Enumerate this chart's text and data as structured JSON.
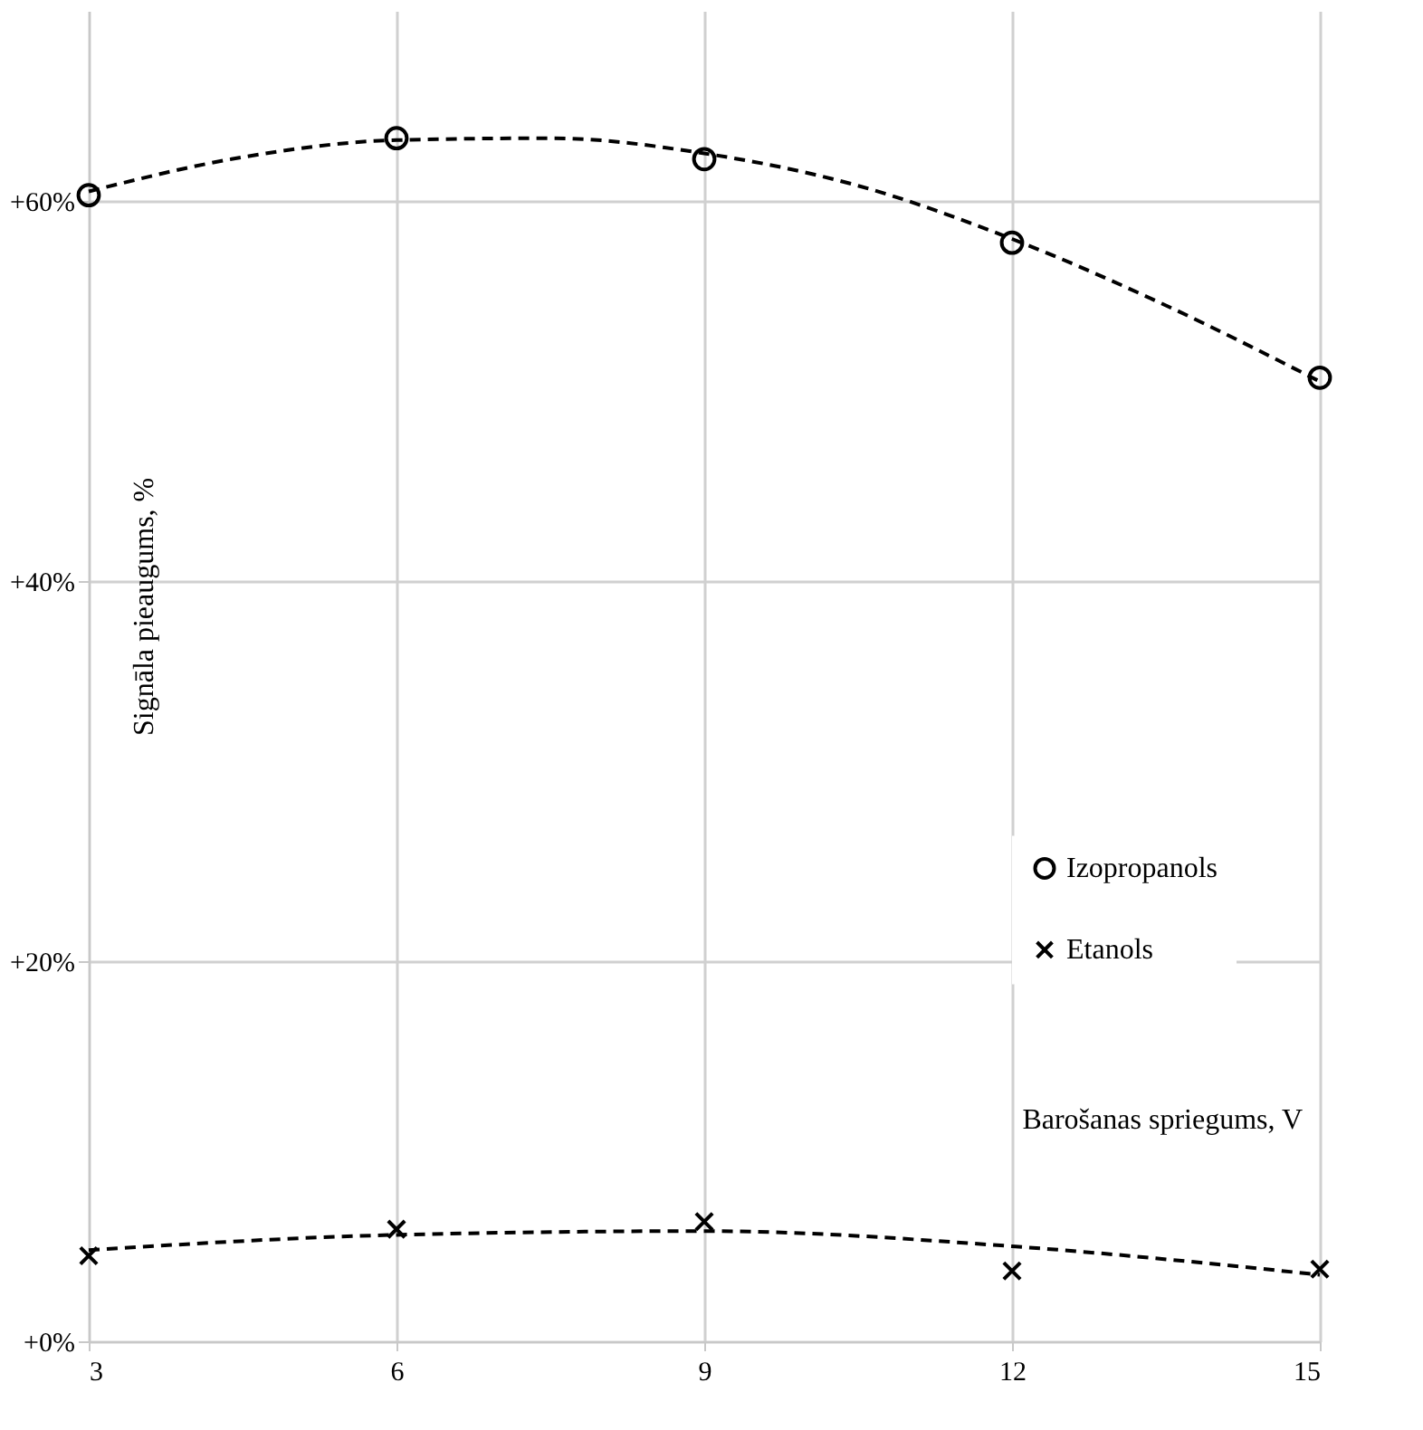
{
  "chart_data": {
    "type": "scatter",
    "xlabel": "Barošanas spriegums, V",
    "ylabel": "Signāla pieaugums, %",
    "x": [
      3,
      6,
      9,
      12,
      15
    ],
    "xlim": [
      3,
      15
    ],
    "xticks": [
      3,
      6,
      9,
      12,
      15
    ],
    "ylim": [
      0,
      70
    ],
    "yticks": [
      {
        "value": 0,
        "label": "+0%"
      },
      {
        "value": 20,
        "label": "+20%"
      },
      {
        "value": 40,
        "label": "+40%"
      },
      {
        "value": 60,
        "label": "+60%"
      }
    ],
    "grid": true,
    "legend": "right",
    "series": [
      {
        "name": "Izopropanols",
        "marker": "circle",
        "color": "#000000",
        "values": [
          60.3,
          63.3,
          62.2,
          57.8,
          50.7
        ]
      },
      {
        "name": "Etanols",
        "marker": "cross",
        "color": "#000000",
        "values": [
          4.5,
          5.9,
          6.3,
          3.7,
          3.8
        ]
      },
      {
        "type": "line",
        "line_style": "dashed",
        "color": "#000000",
        "x": [
          3,
          4.5,
          6,
          7.5,
          9,
          10.5,
          12,
          13.5,
          15
        ],
        "values": [
          60.5,
          62.3,
          63.2,
          63.3,
          62.5,
          60.8,
          58,
          54.5,
          50.5
        ]
      },
      {
        "type": "line",
        "line_style": "dashed",
        "color": "#000000",
        "x": [
          3,
          6,
          9,
          12,
          15
        ],
        "values": [
          4.8,
          5.6,
          5.8,
          5.0,
          3.5
        ]
      }
    ]
  }
}
